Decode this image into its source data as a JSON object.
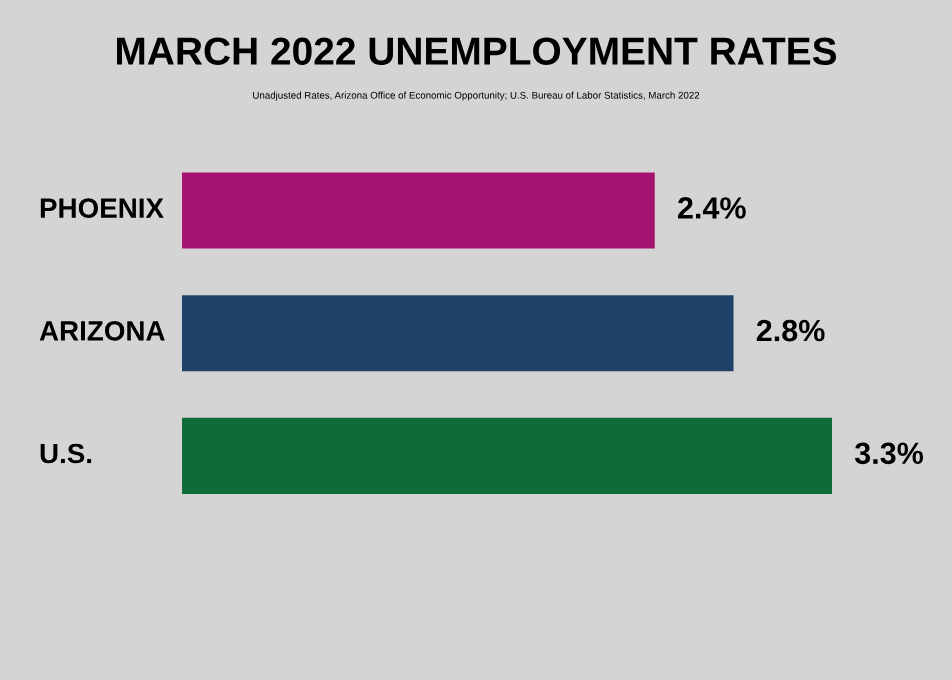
{
  "chart_data": {
    "type": "bar",
    "orientation": "horizontal",
    "title": "MARCH 2022 UNEMPLOYMENT RATES",
    "subtitle": "Unadjusted Rates, Arizona Office of Economic Opportunity; U.S. Bureau of Labor Statistics, March 2022",
    "categories": [
      "PHOENIX",
      "ARIZONA",
      "U.S."
    ],
    "values": [
      2.4,
      2.8,
      3.3
    ],
    "colors": [
      "#a5126f",
      "#1f426b",
      "#0f6b3a"
    ],
    "value_labels": [
      "2.4%",
      "2.8%",
      "3.3%"
    ],
    "data_labels": true
  }
}
